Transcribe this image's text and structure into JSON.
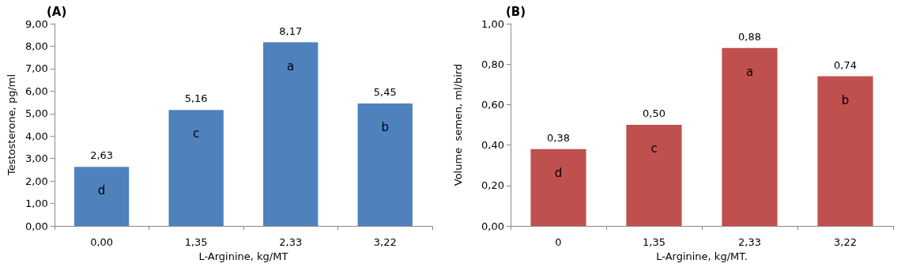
{
  "chart_data": [
    {
      "type": "bar",
      "title": "(A)",
      "xlabel": "L-Arginine, kg/MT",
      "ylabel": "Testosterone, pg/ml",
      "categories": [
        "0,00",
        "1,35",
        "2,33",
        "3,22"
      ],
      "values": [
        2.63,
        5.16,
        8.17,
        5.45
      ],
      "value_labels": [
        "2,63",
        "5,16",
        "8,17",
        "5,45"
      ],
      "color": "#4f81bd",
      "ylim": [
        0,
        9
      ],
      "yticks": [
        {
          "value": 0,
          "label": "0,00"
        },
        {
          "value": 1,
          "label": "1,00"
        },
        {
          "value": 2,
          "label": "2,00"
        },
        {
          "value": 3,
          "label": "3,00"
        },
        {
          "value": 4,
          "label": "4,00"
        },
        {
          "value": 5,
          "label": "5,00"
        },
        {
          "value": 6,
          "label": "6,00"
        },
        {
          "value": 7,
          "label": "7,00"
        },
        {
          "value": 8,
          "label": "8,00"
        },
        {
          "value": 9,
          "label": "9,00"
        }
      ],
      "grid": false,
      "annotations": [
        "d",
        "c",
        "a",
        "b"
      ]
    },
    {
      "type": "bar",
      "title": "(B)",
      "xlabel": "L-Arginine, kg/MT.",
      "ylabel": "Volume  semen, ml/bird",
      "categories": [
        "0",
        "1,35",
        "2,33",
        "3,22"
      ],
      "values": [
        0.38,
        0.5,
        0.88,
        0.74
      ],
      "value_labels": [
        "0,38",
        "0,50",
        "0,88",
        "0,74"
      ],
      "color": "#c0504d",
      "ylim": [
        0,
        1
      ],
      "yticks": [
        {
          "value": 0,
          "label": "0,00"
        },
        {
          "value": 0.2,
          "label": "0,20"
        },
        {
          "value": 0.4,
          "label": "0,40"
        },
        {
          "value": 0.6,
          "label": "0,60"
        },
        {
          "value": 0.8,
          "label": "0,80"
        },
        {
          "value": 1,
          "label": "1,00"
        }
      ],
      "grid": false,
      "annotations": [
        "d",
        "c",
        "a",
        "b"
      ]
    }
  ]
}
